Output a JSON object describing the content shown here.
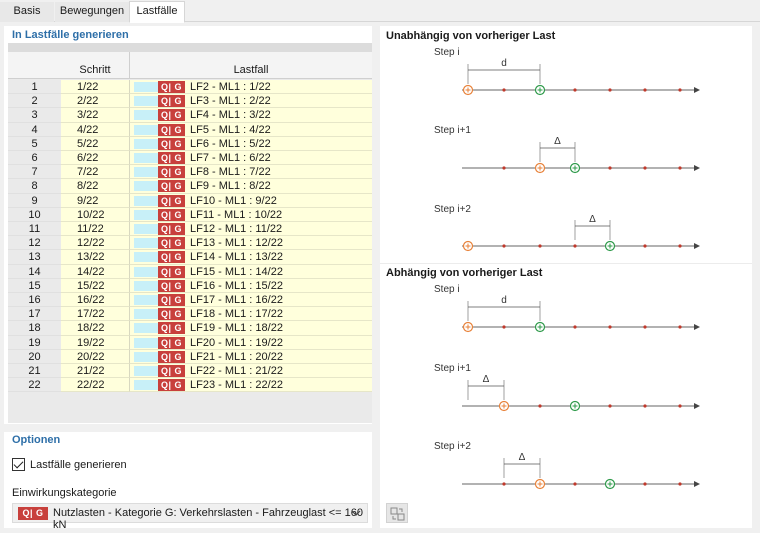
{
  "tabs": [
    {
      "label": "Basis"
    },
    {
      "label": "Bewegungen"
    },
    {
      "label": "Lastfälle"
    }
  ],
  "generate_section": {
    "title": "In Lastfälle generieren",
    "col_step": "Schritt",
    "col_loadcase": "Lastfall",
    "rows": [
      {
        "num": "1",
        "step": "1/22",
        "badge": "Q| G",
        "loadcase": "LF2 - ML1 : 1/22"
      },
      {
        "num": "2",
        "step": "2/22",
        "badge": "Q| G",
        "loadcase": "LF3 - ML1 : 2/22"
      },
      {
        "num": "3",
        "step": "3/22",
        "badge": "Q| G",
        "loadcase": "LF4 - ML1 : 3/22"
      },
      {
        "num": "4",
        "step": "4/22",
        "badge": "Q| G",
        "loadcase": "LF5 - ML1 : 4/22"
      },
      {
        "num": "5",
        "step": "5/22",
        "badge": "Q| G",
        "loadcase": "LF6 - ML1 : 5/22"
      },
      {
        "num": "6",
        "step": "6/22",
        "badge": "Q| G",
        "loadcase": "LF7 - ML1 : 6/22"
      },
      {
        "num": "7",
        "step": "7/22",
        "badge": "Q| G",
        "loadcase": "LF8 - ML1 : 7/22"
      },
      {
        "num": "8",
        "step": "8/22",
        "badge": "Q| G",
        "loadcase": "LF9 - ML1 : 8/22"
      },
      {
        "num": "9",
        "step": "9/22",
        "badge": "Q| G",
        "loadcase": "LF10 - ML1 : 9/22"
      },
      {
        "num": "10",
        "step": "10/22",
        "badge": "Q| G",
        "loadcase": "LF11 - ML1 : 10/22"
      },
      {
        "num": "11",
        "step": "11/22",
        "badge": "Q| G",
        "loadcase": "LF12 - ML1 : 11/22"
      },
      {
        "num": "12",
        "step": "12/22",
        "badge": "Q| G",
        "loadcase": "LF13 - ML1 : 12/22"
      },
      {
        "num": "13",
        "step": "13/22",
        "badge": "Q| G",
        "loadcase": "LF14 - ML1 : 13/22"
      },
      {
        "num": "14",
        "step": "14/22",
        "badge": "Q| G",
        "loadcase": "LF15 - ML1 : 14/22"
      },
      {
        "num": "15",
        "step": "15/22",
        "badge": "Q| G",
        "loadcase": "LF16 - ML1 : 15/22"
      },
      {
        "num": "16",
        "step": "16/22",
        "badge": "Q| G",
        "loadcase": "LF17 - ML1 : 16/22"
      },
      {
        "num": "17",
        "step": "17/22",
        "badge": "Q| G",
        "loadcase": "LF18 - ML1 : 17/22"
      },
      {
        "num": "18",
        "step": "18/22",
        "badge": "Q| G",
        "loadcase": "LF19 - ML1 : 18/22"
      },
      {
        "num": "19",
        "step": "19/22",
        "badge": "Q| G",
        "loadcase": "LF20 - ML1 : 19/22"
      },
      {
        "num": "20",
        "step": "20/22",
        "badge": "Q| G",
        "loadcase": "LF21 - ML1 : 20/22"
      },
      {
        "num": "21",
        "step": "21/22",
        "badge": "Q| G",
        "loadcase": "LF22 - ML1 : 21/22"
      },
      {
        "num": "22",
        "step": "22/22",
        "badge": "Q| G",
        "loadcase": "LF23 - ML1 : 22/22"
      }
    ]
  },
  "options": {
    "title": "Optionen",
    "checkbox_label": "Lastfälle generieren",
    "checkbox_checked": true,
    "category_label": "Einwirkungskategorie",
    "category_badge": "Q| G",
    "category_value": "Nutzlasten - Kategorie G: Verkehrslasten - Fahrzeuglast <= 160 kN"
  },
  "diagram": {
    "independent_title": "Unabhängig von vorheriger Last",
    "dependent_title": "Abhängig von vorheriger Last",
    "step_labels": [
      "Step i",
      "Step i+1",
      "Step i+2"
    ],
    "d_label": "d",
    "delta_label": "Δ"
  },
  "colors": {
    "accent_blue": "#2e6fa8",
    "badge_red": "#c8403c",
    "row_yellow": "#ffffdc",
    "swatch_cyan": "#c8f0f8",
    "orange": "#e8823a",
    "green": "#2e9a4a",
    "dot_red": "#c0392b"
  }
}
